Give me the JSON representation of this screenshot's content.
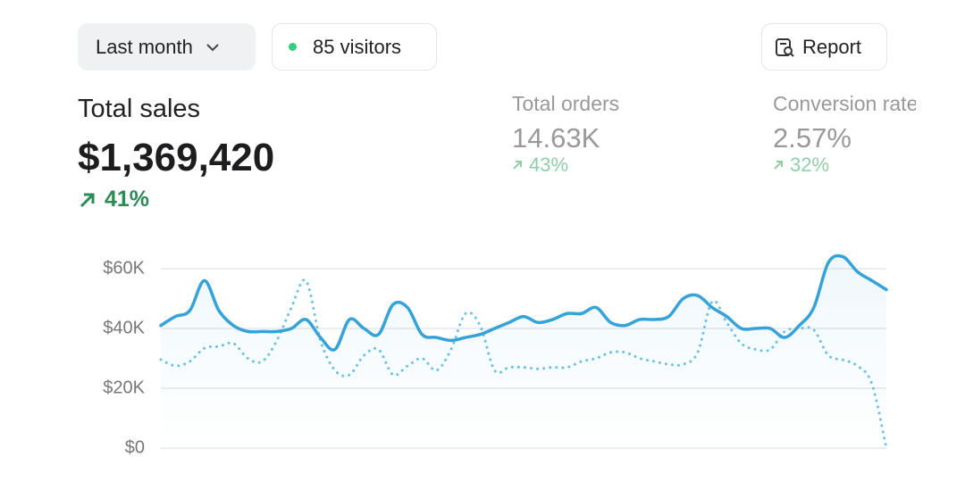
{
  "controls": {
    "period": "Last month",
    "visitors": "85 visitors",
    "report": "Report"
  },
  "metrics": [
    {
      "label": "Total sales",
      "value": "$1,369,420",
      "change": "41%"
    },
    {
      "label": "Total orders",
      "value": "14.63K",
      "change": "43%"
    },
    {
      "label": "Conversion rate",
      "value": "2.57%",
      "change": "32%"
    }
  ],
  "chart_data": {
    "type": "line",
    "categories": [
      null,
      null,
      null,
      null,
      null,
      null,
      null,
      null,
      null,
      null,
      null,
      null,
      null,
      null,
      null,
      null,
      null,
      null,
      null,
      null,
      null,
      null,
      null,
      null,
      null,
      null,
      null,
      null,
      null,
      null,
      null,
      null,
      null,
      null,
      null,
      null,
      null,
      null,
      null,
      null,
      null,
      null,
      null,
      null,
      null,
      null,
      null,
      null,
      null,
      null,
      null
    ],
    "series": [
      {
        "color": "#36a3d8",
        "values": [
          41000,
          44000,
          46000,
          56000,
          46000,
          41000,
          39000,
          39000,
          39000,
          40000,
          43000,
          37000,
          33000,
          43000,
          40000,
          38000,
          48000,
          47000,
          38000,
          37000,
          36000,
          37000,
          38000,
          40000,
          42000,
          44000,
          42000,
          43000,
          45000,
          45000,
          47000,
          42000,
          41000,
          43000,
          43000,
          44000,
          50000,
          51000,
          47000,
          44000,
          40000,
          40000,
          40000,
          37000,
          41000,
          47000,
          62000,
          64000,
          59000,
          56000,
          53000
        ]
      },
      {
        "color": "#6ec3e4",
        "values": [
          29600,
          27500,
          29000,
          33400,
          34000,
          35000,
          30000,
          29000,
          36000,
          47000,
          56000,
          36000,
          26000,
          24500,
          31000,
          33000,
          24500,
          27500,
          30000,
          26000,
          33000,
          45000,
          41000,
          26000,
          27000,
          27000,
          26500,
          27000,
          27000,
          29000,
          30000,
          32000,
          32000,
          30000,
          29000,
          28000,
          28000,
          32000,
          49000,
          42000,
          35000,
          33000,
          33000,
          39000,
          40000,
          39500,
          31000,
          29500,
          27500,
          21500,
          0
        ]
      }
    ],
    "ylim": [
      0,
      70000
    ],
    "yticks": [
      {
        "value": 0,
        "label": "$0"
      },
      {
        "value": 20000,
        "label": "$20K"
      },
      {
        "value": 40000,
        "label": "$40K"
      },
      {
        "value": 60000,
        "label": "$60K"
      }
    ],
    "grid": true
  }
}
